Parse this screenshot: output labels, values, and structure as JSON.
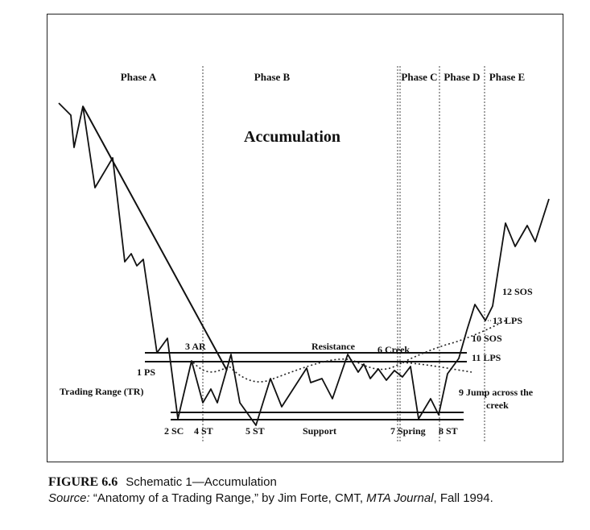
{
  "diagram": {
    "title": "Accumulation",
    "phases": [
      "Phase A",
      "Phase B",
      "Phase C",
      "Phase D",
      "Phase E"
    ],
    "zone_labels": {
      "trading_range": "Trading Range (TR)",
      "resistance": "Resistance",
      "support": "Support"
    },
    "event_labels": {
      "ps": "1 PS",
      "sc": "2 SC",
      "ar": "3 AR",
      "st4": "4 ST",
      "st5": "5 ST",
      "creek": "6 Creek",
      "spring": "7 Spring",
      "st8": "8 ST",
      "jump_line1": "9 Jump across the",
      "jump_line2": "creek",
      "sos10": "10 SOS",
      "lps11": "11 LPS",
      "sos12": "12 SOS",
      "lps13": "13 LPS"
    }
  },
  "caption": {
    "figure_number": "FIGURE 6.6",
    "figure_title": "Schematic 1—Accumulation",
    "source_label": "Source:",
    "source_text_1": "“Anatomy of a Trading Range,” by Jim Forte, CMT,",
    "source_journal": "MTA Journal",
    "source_text_2": ", Fall 1994."
  }
}
